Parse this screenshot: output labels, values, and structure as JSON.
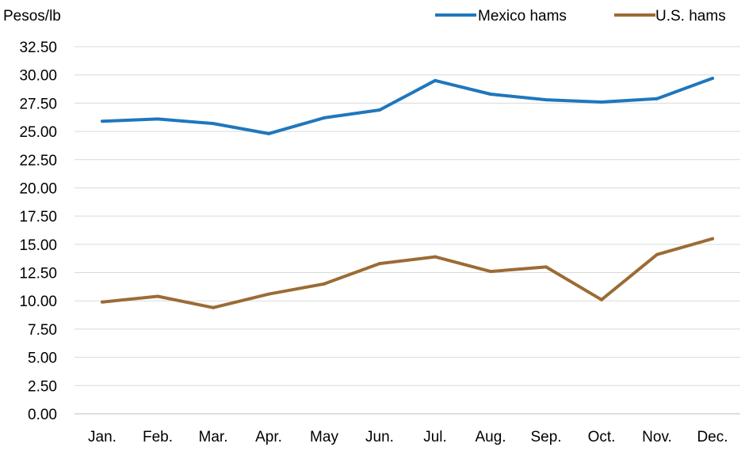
{
  "chart_data": {
    "type": "line",
    "ylabel": "Pesos/lb",
    "ylim": [
      0,
      32.5
    ],
    "yticks": [
      "0.00",
      "2.50",
      "5.00",
      "7.50",
      "10.00",
      "12.50",
      "15.00",
      "17.50",
      "20.00",
      "22.50",
      "25.00",
      "27.50",
      "30.00",
      "32.50"
    ],
    "categories": [
      "Jan.",
      "Feb.",
      "Mar.",
      "Apr.",
      "May",
      "Jun.",
      "Jul.",
      "Aug.",
      "Sep.",
      "Oct.",
      "Nov.",
      "Dec."
    ],
    "series": [
      {
        "name": "Mexico hams",
        "color": "#1f77bd",
        "values": [
          25.9,
          26.1,
          25.7,
          24.8,
          26.2,
          26.9,
          29.5,
          28.3,
          27.8,
          27.6,
          27.9,
          29.7
        ]
      },
      {
        "name": "U.S. hams",
        "color": "#9c6b35",
        "values": [
          9.9,
          10.4,
          9.4,
          10.6,
          11.5,
          13.3,
          13.9,
          12.6,
          13.0,
          10.1,
          14.1,
          15.5
        ]
      }
    ],
    "grid": true,
    "legend": "top-right"
  }
}
